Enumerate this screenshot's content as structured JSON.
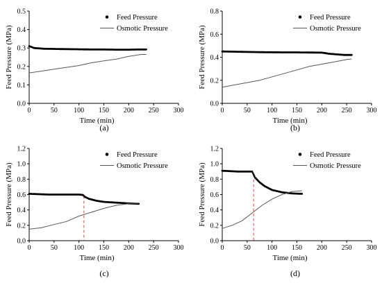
{
  "chart_data": [
    {
      "type": "line",
      "panel_label": "(a)",
      "xlabel": "Time (min)",
      "ylabel": "Feed Pressure (MPa)",
      "xlim": [
        0,
        300
      ],
      "ylim": [
        0,
        0.5
      ],
      "xticks": [
        0,
        50,
        100,
        150,
        200,
        250,
        300
      ],
      "yticks": [
        0.0,
        0.1,
        0.2,
        0.3,
        0.4,
        0.5
      ],
      "ytick_labels": [
        "0.0",
        "0.1",
        "0.2",
        "0.3",
        "0.4",
        "0.5"
      ],
      "grid": false,
      "legend_position": "top-right",
      "marker_line": null,
      "series": [
        {
          "name": "Feed Pressure",
          "style": "dots",
          "x": [
            0,
            5,
            10,
            20,
            30,
            50,
            75,
            100,
            125,
            150,
            175,
            200,
            220,
            235
          ],
          "y": [
            0.31,
            0.305,
            0.3,
            0.298,
            0.296,
            0.295,
            0.294,
            0.293,
            0.292,
            0.292,
            0.291,
            0.291,
            0.292,
            0.292
          ]
        },
        {
          "name": "Osmotic Pressure",
          "style": "line",
          "x": [
            0,
            25,
            50,
            75,
            100,
            125,
            150,
            175,
            200,
            225,
            235
          ],
          "y": [
            0.165,
            0.175,
            0.185,
            0.195,
            0.205,
            0.22,
            0.23,
            0.24,
            0.255,
            0.265,
            0.265
          ]
        }
      ]
    },
    {
      "type": "line",
      "panel_label": "(b)",
      "xlabel": "Time (min)",
      "ylabel": "Feed Pressure (MPa)",
      "xlim": [
        0,
        300
      ],
      "ylim": [
        0,
        0.8
      ],
      "xticks": [
        0,
        50,
        100,
        150,
        200,
        250,
        300
      ],
      "yticks": [
        0.0,
        0.2,
        0.4,
        0.6,
        0.8
      ],
      "ytick_labels": [
        "0.0",
        "0.2",
        "0.4",
        "0.6",
        "0.8"
      ],
      "grid": false,
      "legend_position": "top-right",
      "marker_line": null,
      "series": [
        {
          "name": "Feed Pressure",
          "style": "dots",
          "x": [
            0,
            25,
            50,
            75,
            100,
            125,
            150,
            175,
            200,
            215,
            230,
            245,
            260
          ],
          "y": [
            0.45,
            0.448,
            0.446,
            0.444,
            0.443,
            0.442,
            0.442,
            0.441,
            0.44,
            0.43,
            0.425,
            0.42,
            0.42
          ]
        },
        {
          "name": "Osmotic Pressure",
          "style": "line",
          "x": [
            0,
            25,
            50,
            75,
            100,
            125,
            150,
            175,
            200,
            225,
            250,
            260
          ],
          "y": [
            0.14,
            0.16,
            0.18,
            0.2,
            0.23,
            0.26,
            0.29,
            0.32,
            0.34,
            0.36,
            0.38,
            0.385
          ]
        }
      ]
    },
    {
      "type": "line",
      "panel_label": "(c)",
      "xlabel": "Time (min)",
      "ylabel": "Feed Pressure (MPa)",
      "xlim": [
        0,
        300
      ],
      "ylim": [
        0,
        1.2
      ],
      "xticks": [
        0,
        50,
        100,
        150,
        200,
        250,
        300
      ],
      "yticks": [
        0.0,
        0.2,
        0.4,
        0.6,
        0.8,
        1.0,
        1.2
      ],
      "ytick_labels": [
        "0.0",
        "0.2",
        "0.4",
        "0.6",
        "0.8",
        "1.0",
        "1.2"
      ],
      "grid": false,
      "legend_position": "top-right",
      "marker_line": 110,
      "series": [
        {
          "name": "Feed Pressure",
          "style": "dots",
          "x": [
            0,
            20,
            40,
            60,
            80,
            100,
            108,
            112,
            120,
            135,
            150,
            175,
            200,
            220
          ],
          "y": [
            0.61,
            0.605,
            0.6,
            0.6,
            0.6,
            0.6,
            0.595,
            0.57,
            0.545,
            0.52,
            0.505,
            0.495,
            0.485,
            0.48
          ]
        },
        {
          "name": "Osmotic Pressure",
          "style": "line",
          "x": [
            0,
            25,
            50,
            75,
            100,
            125,
            150,
            175,
            200,
            220
          ],
          "y": [
            0.15,
            0.17,
            0.21,
            0.25,
            0.32,
            0.37,
            0.42,
            0.46,
            0.48,
            0.49
          ]
        }
      ]
    },
    {
      "type": "line",
      "panel_label": "(d)",
      "xlabel": "Time (min)",
      "ylabel": "Feed Pressure (MPa)",
      "xlim": [
        0,
        300
      ],
      "ylim": [
        0,
        1.2
      ],
      "xticks": [
        0,
        50,
        100,
        150,
        200,
        250,
        300
      ],
      "yticks": [
        0.0,
        0.2,
        0.4,
        0.6,
        0.8,
        1.0,
        1.2
      ],
      "ytick_labels": [
        "0.0",
        "0.2",
        "0.4",
        "0.6",
        "0.8",
        "1.0",
        "1.2"
      ],
      "grid": false,
      "legend_position": "top-right",
      "marker_line": 63,
      "series": [
        {
          "name": "Feed Pressure",
          "style": "dots",
          "x": [
            0,
            15,
            30,
            45,
            60,
            63,
            66,
            75,
            85,
            100,
            120,
            140,
            160
          ],
          "y": [
            0.91,
            0.905,
            0.9,
            0.9,
            0.9,
            0.86,
            0.82,
            0.76,
            0.71,
            0.66,
            0.63,
            0.615,
            0.61
          ]
        },
        {
          "name": "Osmotic Pressure",
          "style": "line",
          "x": [
            0,
            20,
            40,
            60,
            80,
            100,
            120,
            140,
            160
          ],
          "y": [
            0.16,
            0.2,
            0.26,
            0.36,
            0.46,
            0.54,
            0.6,
            0.64,
            0.65
          ]
        }
      ]
    }
  ]
}
